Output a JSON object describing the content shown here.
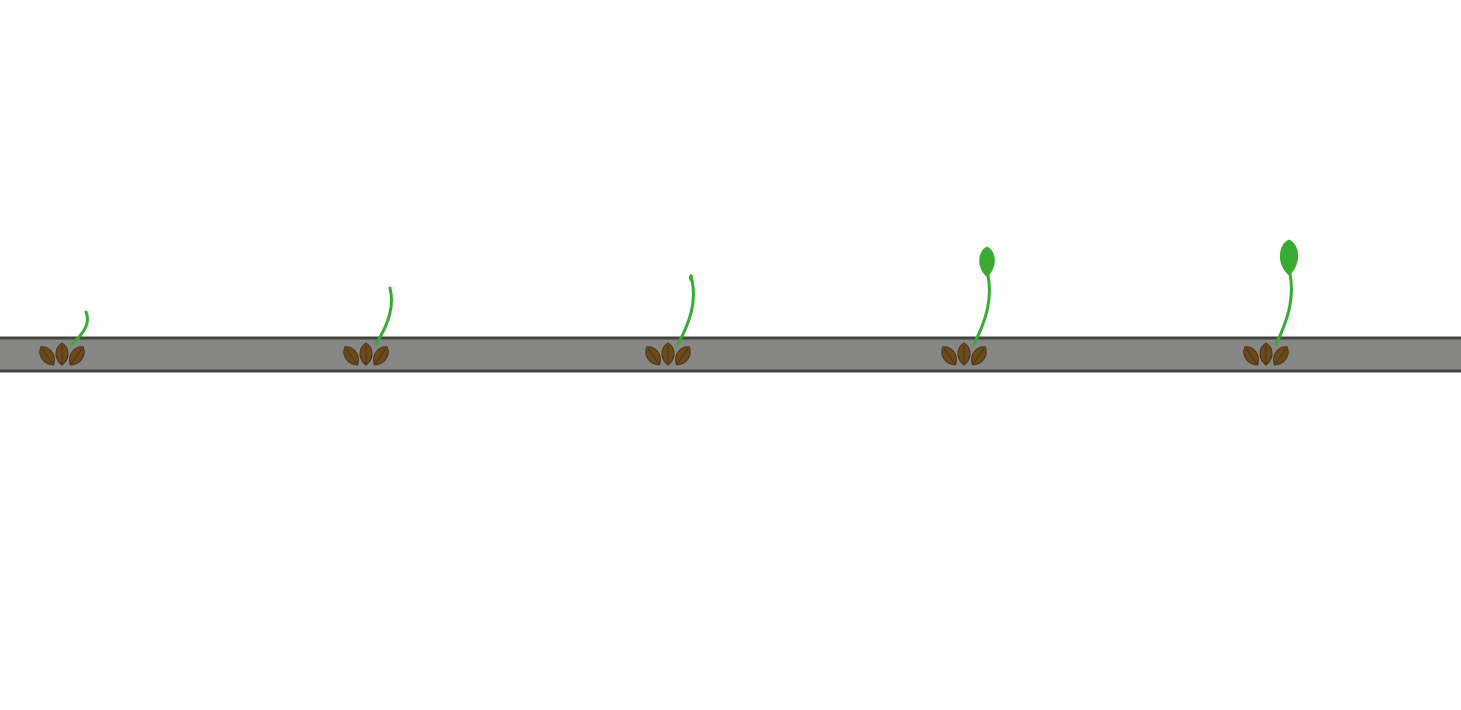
{
  "scene": {
    "colors": {
      "background": "#ffffff",
      "soil_fill": "#878886",
      "soil_border": "#444542",
      "seed_fill": "#6b4b1e",
      "seed_line": "#4a3210",
      "stem": "#3aab32",
      "leaf": "#3aab32"
    },
    "stages": [
      {
        "stage": 1,
        "stem_height": 0.4,
        "leaf_size": 0
      },
      {
        "stage": 2,
        "stem_height": 0.7,
        "leaf_size": 0
      },
      {
        "stage": 3,
        "stem_height": 0.8,
        "leaf_size": 0.15
      },
      {
        "stage": 4,
        "stem_height": 0.86,
        "leaf_size": 0.85
      },
      {
        "stage": 5,
        "stem_height": 0.88,
        "leaf_size": 1.0
      }
    ]
  }
}
